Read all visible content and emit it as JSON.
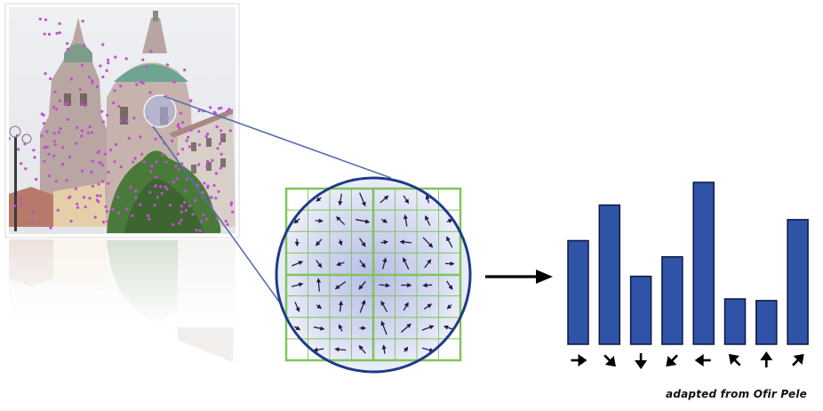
{
  "credit": "adapted from Ofir Pele",
  "colors": {
    "bar": "#2f53a7",
    "grid": "#7fc45a",
    "circle_edge": "#1f3a8a",
    "keypoint": "#c24fd0",
    "arrow": "#000000",
    "zoom_line": "#5a6fb0"
  },
  "icons": {
    "photo": "baroque-church-photo",
    "circle": "keypoint-neighborhood-circle",
    "arrow": "right-arrow-icon"
  },
  "histogram": {
    "bins": [
      {
        "value": 0.64,
        "orientation_deg": 0
      },
      {
        "value": 0.86,
        "orientation_deg": 45
      },
      {
        "value": 0.42,
        "orientation_deg": 90
      },
      {
        "value": 0.54,
        "orientation_deg": 135
      },
      {
        "value": 1.0,
        "orientation_deg": 180
      },
      {
        "value": 0.28,
        "orientation_deg": 225
      },
      {
        "value": 0.27,
        "orientation_deg": 270
      },
      {
        "value": 0.77,
        "orientation_deg": 315
      }
    ]
  }
}
